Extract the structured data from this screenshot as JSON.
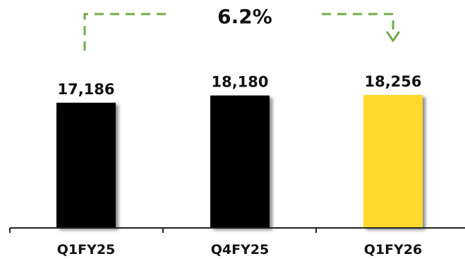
{
  "chart_data": {
    "type": "bar",
    "title": "",
    "xlabel": "",
    "ylabel": "",
    "categories": [
      "Q1FY25",
      "Q4FY25",
      "Q1FY26"
    ],
    "values": [
      17186,
      18180,
      18256
    ],
    "value_labels": [
      "17,186",
      "18,180",
      "18,256"
    ],
    "bar_colors": [
      "#000000",
      "#000000",
      "#FFD92F"
    ],
    "growth_annotation": {
      "text": "6.2%",
      "from": "Q1FY25",
      "to": "Q1FY26",
      "color": "#70AD47"
    },
    "grid": false,
    "legend": "none"
  }
}
